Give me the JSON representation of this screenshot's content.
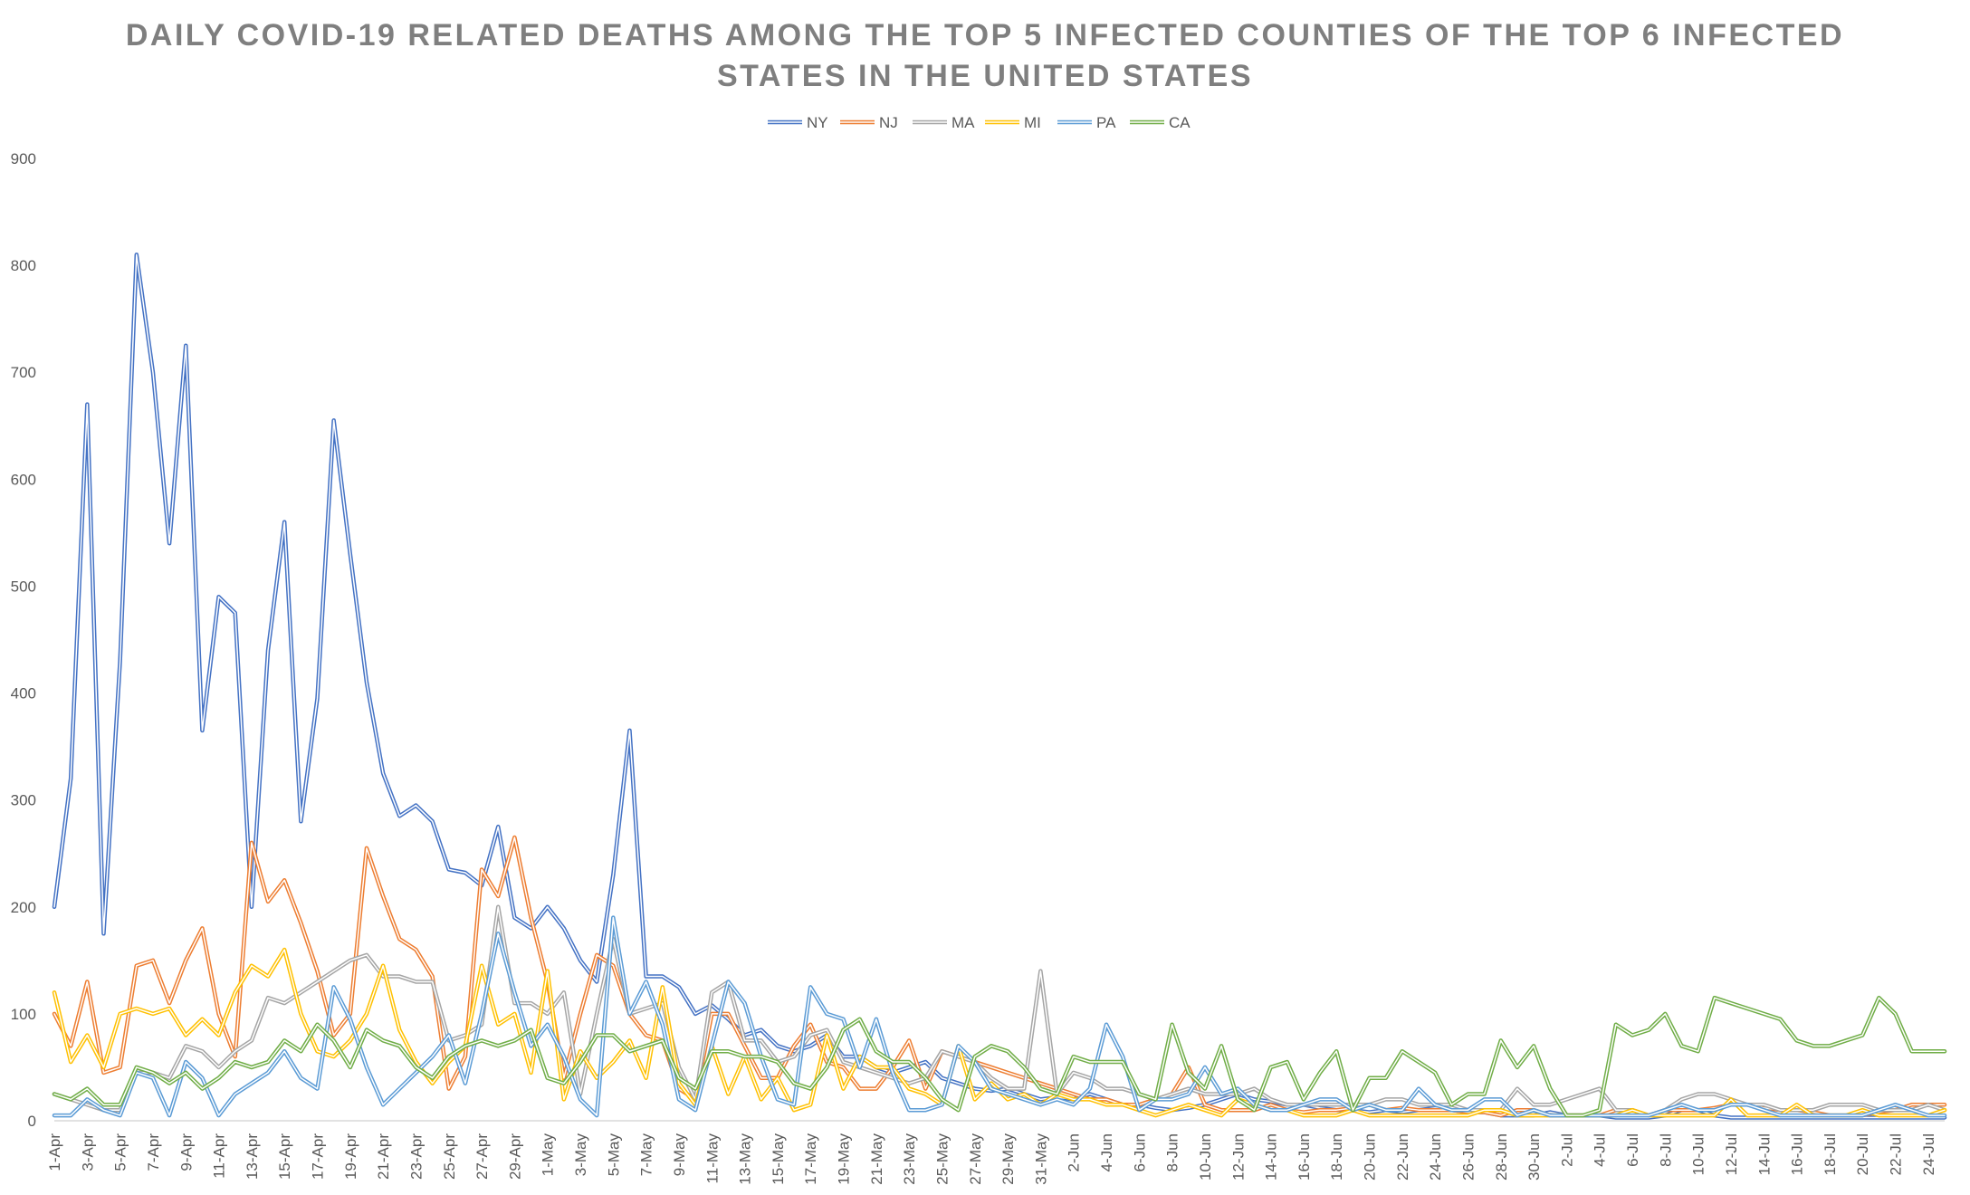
{
  "chart_data": {
    "type": "line",
    "title": "DAILY COVID-19 RELATED DEATHS AMONG THE TOP 5 INFECTED COUNTIES OF THE TOP 6 INFECTED STATES IN THE UNITED STATES",
    "title_lines": [
      "DAILY COVID-19 RELATED DEATHS AMONG THE TOP 5 INFECTED COUNTIES OF THE TOP 6 INFECTED",
      "STATES IN THE UNITED STATES"
    ],
    "xlabel": "",
    "ylabel": "",
    "ylim": [
      0,
      900
    ],
    "yticks": [
      "0",
      "100",
      "200",
      "300",
      "400",
      "500",
      "600",
      "700",
      "800",
      "900"
    ],
    "grid": false,
    "legend_position": "top",
    "line_style": "double",
    "xtick_labels": [
      "1-Apr",
      "3-Apr",
      "5-Apr",
      "7-Apr",
      "9-Apr",
      "11-Apr",
      "13-Apr",
      "15-Apr",
      "17-Apr",
      "19-Apr",
      "21-Apr",
      "23-Apr",
      "25-Apr",
      "27-Apr",
      "29-Apr",
      "1-May",
      "3-May",
      "5-May",
      "7-May",
      "9-May",
      "11-May",
      "13-May",
      "15-May",
      "17-May",
      "19-May",
      "21-May",
      "23-May",
      "25-May",
      "27-May",
      "29-May",
      "31-May",
      "2-Jun",
      "4-Jun",
      "6-Jun",
      "8-Jun",
      "10-Jun",
      "12-Jun",
      "14-Jun",
      "16-Jun",
      "18-Jun",
      "20-Jun",
      "22-Jun",
      "24-Jun",
      "26-Jun",
      "28-Jun",
      "30-Jun",
      "2-Jul",
      "4-Jul",
      "6-Jul",
      "8-Jul",
      "10-Jul",
      "12-Jul",
      "14-Jul",
      "16-Jul",
      "18-Jul",
      "20-Jul",
      "22-Jul",
      "24-Jul"
    ],
    "series": [
      {
        "name": "NY",
        "color": "#4472c4",
        "values": [
          200,
          320,
          670,
          175,
          430,
          810,
          700,
          540,
          725,
          365,
          490,
          475,
          200,
          440,
          560,
          280,
          395,
          655,
          530,
          410,
          325,
          285,
          295,
          280,
          235,
          232,
          220,
          275,
          190,
          180,
          200,
          180,
          150,
          130,
          230,
          365,
          135,
          135,
          125,
          100,
          108,
          95,
          80,
          85,
          70,
          65,
          70,
          80,
          60,
          60,
          50,
          45,
          50,
          55,
          40,
          35,
          30,
          28,
          30,
          25,
          20,
          22,
          20,
          25,
          20,
          15,
          15,
          12,
          10,
          12,
          15,
          20,
          25,
          20,
          18,
          15,
          15,
          12,
          10,
          10,
          8,
          10,
          8,
          10,
          12,
          10,
          8,
          8,
          5,
          5,
          5,
          8,
          5,
          5,
          5,
          3,
          3,
          3,
          5,
          10,
          10,
          5,
          3,
          3,
          3,
          3,
          3,
          3,
          3,
          3,
          3,
          3,
          3,
          3,
          3,
          3
        ]
      },
      {
        "name": "NJ",
        "color": "#ed7d31",
        "values": [
          100,
          70,
          130,
          45,
          50,
          145,
          150,
          110,
          150,
          180,
          100,
          60,
          260,
          205,
          225,
          185,
          140,
          80,
          100,
          255,
          210,
          170,
          160,
          135,
          30,
          60,
          235,
          210,
          265,
          190,
          130,
          40,
          100,
          155,
          145,
          100,
          80,
          75,
          30,
          20,
          100,
          100,
          70,
          40,
          40,
          70,
          90,
          55,
          50,
          30,
          30,
          50,
          75,
          30,
          65,
          60,
          55,
          50,
          45,
          40,
          35,
          30,
          25,
          20,
          20,
          15,
          15,
          20,
          25,
          50,
          15,
          10,
          10,
          10,
          15,
          10,
          8,
          10,
          10,
          12,
          15,
          10,
          12,
          10,
          10,
          10,
          8,
          8,
          5,
          10,
          10,
          5,
          5,
          5,
          5,
          10,
          10,
          5,
          10,
          10,
          10,
          12,
          15,
          15,
          12,
          10,
          10,
          8,
          5,
          5,
          5,
          8,
          10,
          15,
          15,
          15
        ]
      },
      {
        "name": "MA",
        "color": "#a5a5a5",
        "values": [
          25,
          20,
          15,
          10,
          10,
          45,
          45,
          40,
          70,
          65,
          50,
          65,
          75,
          115,
          110,
          120,
          130,
          140,
          150,
          155,
          135,
          135,
          130,
          130,
          75,
          80,
          90,
          200,
          110,
          110,
          100,
          120,
          25,
          100,
          170,
          100,
          105,
          110,
          50,
          20,
          120,
          130,
          75,
          75,
          55,
          60,
          80,
          85,
          55,
          50,
          45,
          40,
          35,
          40,
          65,
          60,
          55,
          40,
          30,
          30,
          140,
          25,
          45,
          40,
          30,
          30,
          25,
          20,
          25,
          30,
          25,
          25,
          25,
          30,
          20,
          15,
          15,
          15,
          15,
          15,
          15,
          20,
          20,
          15,
          15,
          15,
          10,
          10,
          10,
          30,
          15,
          15,
          20,
          25,
          30,
          10,
          10,
          5,
          10,
          20,
          25,
          25,
          20,
          15,
          15,
          10,
          10,
          10,
          15,
          15,
          15,
          10,
          10,
          10,
          15,
          10
        ]
      },
      {
        "name": "MI",
        "color": "#ffc000",
        "values": [
          120,
          55,
          80,
          50,
          100,
          105,
          100,
          105,
          80,
          95,
          80,
          120,
          145,
          135,
          160,
          100,
          65,
          60,
          75,
          100,
          145,
          85,
          55,
          35,
          55,
          70,
          145,
          90,
          100,
          45,
          140,
          20,
          65,
          40,
          55,
          75,
          40,
          125,
          35,
          15,
          70,
          25,
          60,
          20,
          40,
          10,
          15,
          80,
          30,
          60,
          50,
          50,
          30,
          25,
          15,
          70,
          20,
          35,
          20,
          25,
          15,
          25,
          20,
          20,
          15,
          15,
          10,
          5,
          10,
          15,
          10,
          5,
          20,
          15,
          10,
          10,
          5,
          5,
          5,
          10,
          5,
          5,
          5,
          5,
          5,
          5,
          5,
          10,
          10,
          5,
          5,
          5,
          5,
          5,
          5,
          5,
          10,
          5,
          5,
          5,
          5,
          5,
          20,
          5,
          5,
          5,
          15,
          5,
          5,
          5,
          10,
          5,
          5,
          5,
          5,
          10
        ]
      },
      {
        "name": "PA",
        "color": "#5b9bd5",
        "values": [
          5,
          5,
          20,
          10,
          5,
          45,
          40,
          5,
          55,
          40,
          5,
          25,
          35,
          45,
          65,
          40,
          30,
          125,
          95,
          50,
          15,
          30,
          45,
          60,
          80,
          35,
          100,
          175,
          120,
          70,
          90,
          60,
          20,
          5,
          190,
          100,
          130,
          90,
          20,
          10,
          70,
          130,
          110,
          60,
          20,
          15,
          125,
          100,
          95,
          50,
          95,
          45,
          10,
          10,
          15,
          70,
          55,
          30,
          25,
          20,
          15,
          20,
          15,
          30,
          90,
          60,
          10,
          20,
          20,
          25,
          50,
          25,
          30,
          15,
          10,
          10,
          15,
          20,
          20,
          10,
          15,
          10,
          10,
          30,
          15,
          10,
          10,
          20,
          20,
          5,
          10,
          5,
          5,
          5,
          5,
          5,
          5,
          5,
          10,
          15,
          10,
          10,
          15,
          15,
          10,
          5,
          5,
          5,
          5,
          5,
          5,
          10,
          15,
          10,
          5,
          5
        ]
      },
      {
        "name": "CA",
        "color": "#70ad47",
        "values": [
          25,
          20,
          30,
          15,
          15,
          50,
          45,
          35,
          45,
          30,
          40,
          55,
          50,
          55,
          75,
          65,
          90,
          75,
          50,
          85,
          75,
          70,
          50,
          40,
          60,
          70,
          75,
          70,
          75,
          85,
          40,
          35,
          55,
          80,
          80,
          65,
          70,
          75,
          40,
          30,
          65,
          65,
          60,
          60,
          55,
          35,
          30,
          50,
          85,
          95,
          65,
          55,
          55,
          40,
          20,
          10,
          60,
          70,
          65,
          50,
          30,
          25,
          60,
          55,
          55,
          55,
          25,
          20,
          90,
          45,
          30,
          70,
          20,
          10,
          50,
          55,
          20,
          45,
          65,
          10,
          40,
          40,
          65,
          55,
          45,
          15,
          25,
          25,
          75,
          50,
          70,
          30,
          5,
          5,
          10,
          90,
          80,
          85,
          100,
          70,
          65,
          115,
          110,
          105,
          100,
          95,
          75,
          70,
          70,
          75,
          80,
          115,
          100,
          65,
          65,
          65
        ]
      }
    ]
  }
}
